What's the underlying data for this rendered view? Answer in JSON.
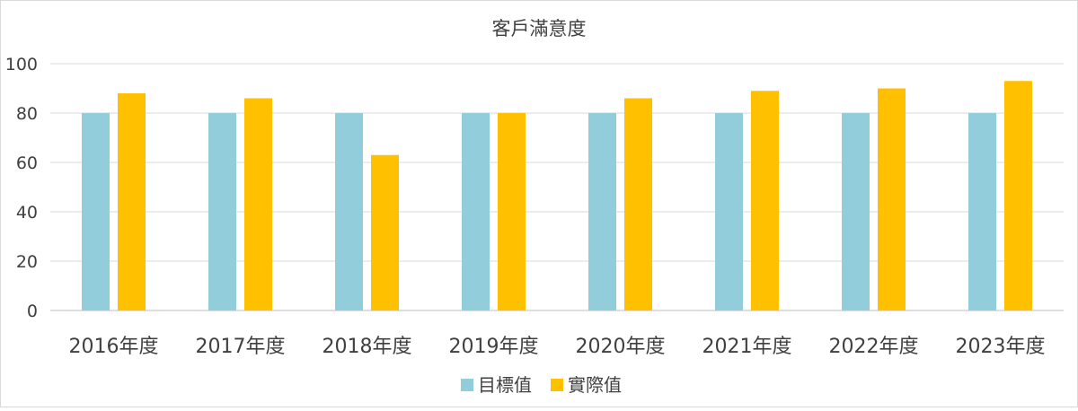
{
  "chart_data": {
    "type": "bar",
    "title": "客戶滿意度",
    "xlabel": "",
    "ylabel": "",
    "categories": [
      "2016年度",
      "2017年度",
      "2018年度",
      "2019年度",
      "2020年度",
      "2021年度",
      "2022年度",
      "2023年度"
    ],
    "series": [
      {
        "name": "目標值",
        "color": "#92cddc",
        "values": [
          80,
          80,
          80,
          80,
          80,
          80,
          80,
          80
        ]
      },
      {
        "name": "實際值",
        "color": "#ffc000",
        "values": [
          88,
          86,
          63,
          80,
          86,
          89,
          90,
          93
        ]
      }
    ],
    "ylim": [
      0,
      100
    ],
    "yticks": [
      0,
      20,
      40,
      60,
      80,
      100
    ],
    "grid": true,
    "legend": "bottom"
  }
}
